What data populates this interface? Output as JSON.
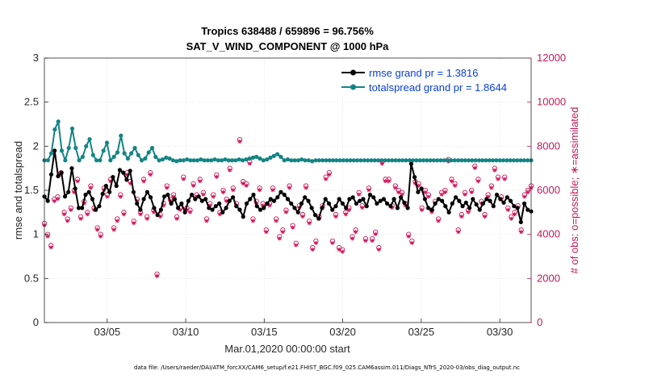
{
  "chart_data": {
    "type": "line",
    "title_line1": "Tropics 638488 / 659896 = 96.756%",
    "title_line2": "SAT_V_WIND_COMPONENT @ 1000 hPa",
    "xlabel": "Mar.01,2020 00:00:00 start",
    "ylabel_left": "rmse and totalspread",
    "ylabel_right": "# of obs: o=possible; ∗=assimilated",
    "ylim_left": [
      0,
      3
    ],
    "ylim_right": [
      0,
      12000
    ],
    "xlim_days": [
      1,
      32
    ],
    "left_ticks": [
      "0",
      "0.5",
      "1",
      "1.5",
      "2",
      "2.5",
      "3"
    ],
    "right_ticks": [
      "0",
      "2000",
      "4000",
      "6000",
      "8000",
      "10000",
      "12000"
    ],
    "x_ticks": [
      {
        "day": 5,
        "label": "03/05"
      },
      {
        "day": 10,
        "label": "03/10"
      },
      {
        "day": 15,
        "label": "03/15"
      },
      {
        "day": 20,
        "label": "03/20"
      },
      {
        "day": 25,
        "label": "03/25"
      },
      {
        "day": 30,
        "label": "03/30"
      }
    ],
    "grid": true,
    "legend_position": "top-right",
    "colors": {
      "rmse": "#000000",
      "spread": "#138484",
      "obs": "#d4125a",
      "right_axis": "#c2185b",
      "legend_text": "#0a3fd6"
    },
    "series": [
      {
        "name": "rmse grand pr = 1.3816",
        "y": [
          1.43,
          1.38,
          1.68,
          1.95,
          1.66,
          1.7,
          1.43,
          1.48,
          1.75,
          1.52,
          1.3,
          1.3,
          1.45,
          1.48,
          1.4,
          1.28,
          1.32,
          1.46,
          1.55,
          1.48,
          1.65,
          1.55,
          1.73,
          1.7,
          1.62,
          1.72,
          1.48,
          1.35,
          1.28,
          1.4,
          1.48,
          1.42,
          1.3,
          1.22,
          1.28,
          1.43,
          1.45,
          1.35,
          1.4,
          1.3,
          1.35,
          1.25,
          1.38,
          1.45,
          1.4,
          1.43,
          1.38,
          1.4,
          1.3,
          1.28,
          1.32,
          1.35,
          1.25,
          1.3,
          1.38,
          1.42,
          1.32,
          1.28,
          1.2,
          1.35,
          1.4,
          1.45,
          1.32,
          1.28,
          1.3,
          1.35,
          1.4,
          1.38,
          1.42,
          1.48,
          1.45,
          1.4,
          1.35,
          1.3,
          1.25,
          1.35,
          1.42,
          1.38,
          1.3,
          1.22,
          1.18,
          1.3,
          1.4,
          1.35,
          1.28,
          1.32,
          1.4,
          1.35,
          1.3,
          1.4,
          1.42,
          1.35,
          1.38,
          1.4,
          1.32,
          1.45,
          1.42,
          1.35,
          1.38,
          1.4,
          1.35,
          1.32,
          1.4,
          1.3,
          1.42,
          1.36,
          1.3,
          1.8,
          1.65,
          1.48,
          1.52,
          1.4,
          1.3,
          1.28,
          1.35,
          1.4,
          1.38,
          1.32,
          1.25,
          1.35,
          1.42,
          1.38,
          1.32,
          1.36,
          1.3,
          1.4,
          1.34,
          1.28,
          1.35,
          1.4,
          1.38,
          1.32,
          1.45,
          1.4,
          1.36,
          1.42,
          1.38,
          1.32,
          1.3,
          1.14,
          1.35,
          1.28,
          1.26
        ]
      },
      {
        "name": "totalspread grand pr = 1.8644",
        "y": [
          1.84,
          1.84,
          1.92,
          2.19,
          2.28,
          1.95,
          1.84,
          1.98,
          2.2,
          1.98,
          1.84,
          1.88,
          2.0,
          2.08,
          1.9,
          1.84,
          1.84,
          1.95,
          2.04,
          1.84,
          1.88,
          1.93,
          2.12,
          1.92,
          1.86,
          1.92,
          1.98,
          1.9,
          1.84,
          1.86,
          1.93,
          1.98,
          1.88,
          1.84,
          1.85,
          1.87,
          1.86,
          1.84,
          1.83,
          1.84,
          1.84,
          1.85,
          1.84,
          1.84,
          1.84,
          1.85,
          1.84,
          1.84,
          1.84,
          1.85,
          1.84,
          1.84,
          1.85,
          1.84,
          1.84,
          1.84,
          1.85,
          1.84,
          1.85,
          1.86,
          1.87,
          1.88,
          1.86,
          1.84,
          1.85,
          1.87,
          1.89,
          1.91,
          1.88,
          1.84,
          1.85,
          1.84,
          1.84,
          1.84,
          1.85,
          1.84,
          1.84,
          1.83,
          1.84,
          1.84,
          1.84,
          1.84,
          1.84,
          1.84,
          1.84,
          1.84,
          1.84,
          1.84,
          1.84,
          1.84,
          1.84,
          1.84,
          1.84,
          1.84,
          1.84,
          1.84,
          1.84,
          1.84,
          1.84,
          1.84,
          1.84,
          1.84,
          1.84,
          1.84,
          1.84,
          1.84,
          1.84,
          1.84,
          1.84,
          1.84,
          1.84,
          1.84,
          1.84,
          1.84,
          1.84,
          1.84,
          1.84,
          1.84,
          1.84,
          1.84,
          1.84,
          1.84,
          1.84,
          1.84,
          1.84,
          1.84,
          1.84,
          1.84,
          1.84,
          1.84,
          1.84,
          1.84,
          1.84,
          1.84,
          1.84,
          1.84,
          1.84,
          1.84,
          1.84,
          1.84,
          1.84
        ]
      }
    ],
    "obs_possible": [
      4500,
      4000,
      3500,
      5600,
      5700,
      6800,
      5000,
      4700,
      5200,
      6000,
      6500,
      4800,
      5500,
      5000,
      6200,
      5200,
      4300,
      4000,
      6100,
      5800,
      6500,
      4300,
      4700,
      5800,
      5000,
      6800,
      6400,
      4600,
      5600,
      5000,
      6500,
      4800,
      6800,
      5100,
      2200,
      4900,
      5400,
      6200,
      5600,
      5800,
      4800,
      5200,
      6600,
      5200,
      5100,
      6300,
      5800,
      6500,
      5900,
      4700,
      5400,
      5800,
      6700,
      5000,
      6000,
      5600,
      7000,
      6100,
      5400,
      8300,
      6400,
      6300,
      7300,
      4700,
      5500,
      6100,
      5400,
      4200,
      5400,
      6100,
      4700,
      3900,
      4200,
      5100,
      6200,
      4400,
      3600,
      5300,
      4900,
      6200,
      4600,
      3400,
      3700,
      4800,
      5300,
      6600,
      6800,
      3700,
      4900,
      3400,
      3300,
      5000,
      5200,
      3900,
      4200,
      5900,
      5300,
      3800,
      6100,
      3800,
      4100,
      3400,
      7300,
      6500,
      6500,
      5300,
      6200,
      6000,
      5900,
      5400,
      4000,
      3700,
      6400,
      6300,
      5200,
      6000,
      5800,
      5100,
      5500,
      4700,
      5900,
      6000,
      7400,
      6500,
      6300,
      4200,
      4900,
      5900,
      5100,
      6000,
      7100,
      6500,
      5500,
      4900,
      5800,
      6200,
      7000,
      6600,
      5700,
      6600,
      5200,
      4800,
      5000,
      5300,
      4200,
      5800,
      6000,
      6200
    ]
  },
  "footnote": "data file: /Users/raeder/DAI/ATM_forcXX/CAM6_setup/f.e21.FHIST_BGC.f09_025.CAM6assim.011/Diags_NTrS_2020-03/obs_diag_output.nc"
}
